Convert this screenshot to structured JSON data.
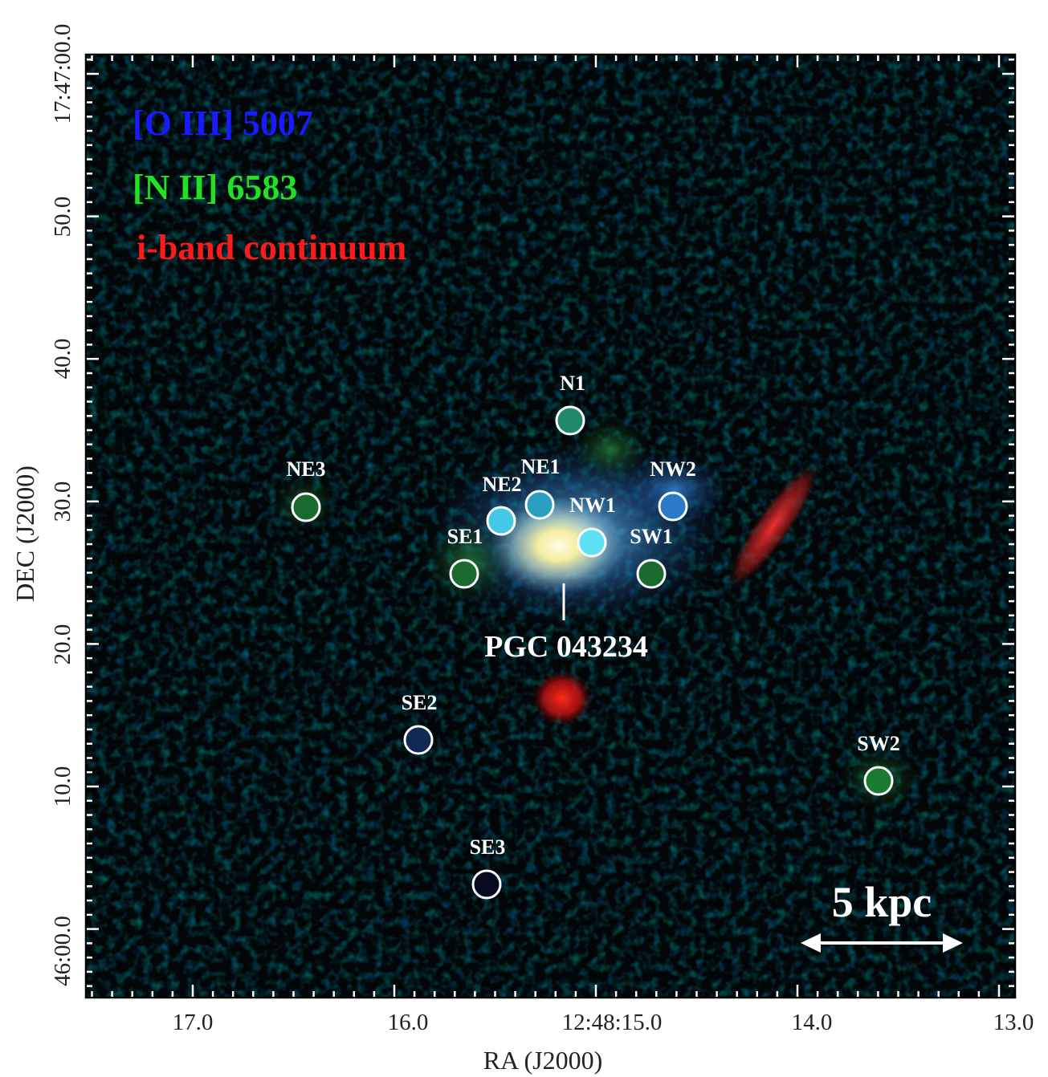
{
  "axes": {
    "xlabel": "RA (J2000)",
    "ylabel": "DEC (J2000)",
    "x_ticks": [
      "17.0",
      "16.0",
      "12:48:15.0",
      "14.0",
      "13.0"
    ],
    "y_ticks": [
      "17:47:00.0",
      "50.0",
      "40.0",
      "30.0",
      "20.0",
      "10.0",
      "46:00.0"
    ]
  },
  "legend": [
    {
      "text": "[O III] 5007",
      "color": "#1a1aff"
    },
    {
      "text": "[N II] 6583",
      "color": "#22e022"
    },
    {
      "text": "i-band continuum",
      "color": "#ff1a1a"
    }
  ],
  "regions": [
    {
      "id": "N1",
      "label": "N1",
      "fill": "#1f8a6a"
    },
    {
      "id": "NE1",
      "label": "NE1",
      "fill": "#2a9fbf"
    },
    {
      "id": "NE2",
      "label": "NE2",
      "fill": "#45c8e6"
    },
    {
      "id": "NE3",
      "label": "NE3",
      "fill": "#1a6a30"
    },
    {
      "id": "NW1",
      "label": "NW1",
      "fill": "#5ee0f5"
    },
    {
      "id": "NW2",
      "label": "NW2",
      "fill": "#2a7ac8"
    },
    {
      "id": "SW1",
      "label": "SW1",
      "fill": "#1a6a30"
    },
    {
      "id": "SE1",
      "label": "SE1",
      "fill": "#1a6a30"
    },
    {
      "id": "SE2",
      "label": "SE2",
      "fill": "#0e2a55"
    },
    {
      "id": "SE3",
      "label": "SE3",
      "fill": "#050a20"
    },
    {
      "id": "SW2",
      "label": "SW2",
      "fill": "#1a7a30"
    }
  ],
  "galaxy_label": "PGC 043234",
  "scale_bar": {
    "text": "5 kpc"
  }
}
